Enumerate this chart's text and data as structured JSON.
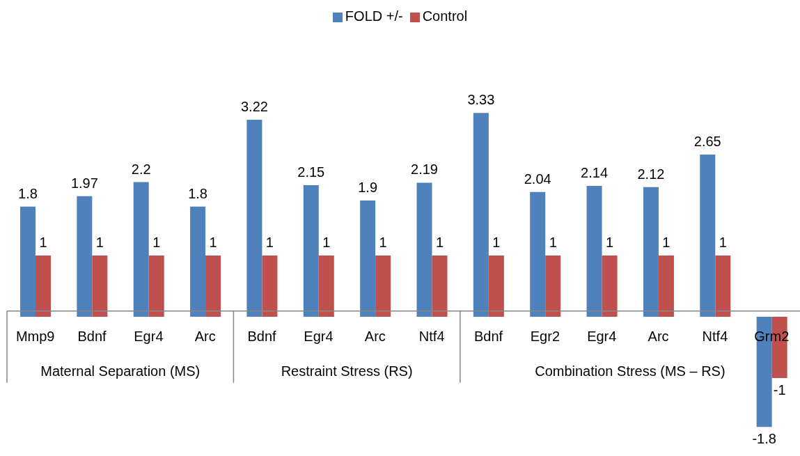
{
  "chart_data": {
    "type": "bar",
    "categories": [
      "Mmp9",
      "Bdnf",
      "Egr4",
      "Arc",
      "Bdnf",
      "Egr4",
      "Arc",
      "Ntf4",
      "Bdnf",
      "Egr2",
      "Egr4",
      "Arc",
      "Ntf4",
      "Grm2"
    ],
    "series": [
      {
        "name": "FOLD +/-",
        "color": "#4f81bd",
        "values": [
          1.8,
          1.97,
          2.2,
          1.8,
          3.22,
          2.15,
          1.9,
          2.19,
          3.33,
          2.04,
          2.14,
          2.12,
          2.65,
          -1.8
        ]
      },
      {
        "name": "Control",
        "color": "#c0504d",
        "values": [
          1,
          1,
          1,
          1,
          1,
          1,
          1,
          1,
          1,
          1,
          1,
          1,
          1,
          -1
        ]
      }
    ],
    "annotations": [
      "Maternal Separation (MS)",
      "Restraint Stress (RS)",
      "Combination Stress (MS – RS)"
    ],
    "data_labels": true,
    "legend": "top"
  }
}
